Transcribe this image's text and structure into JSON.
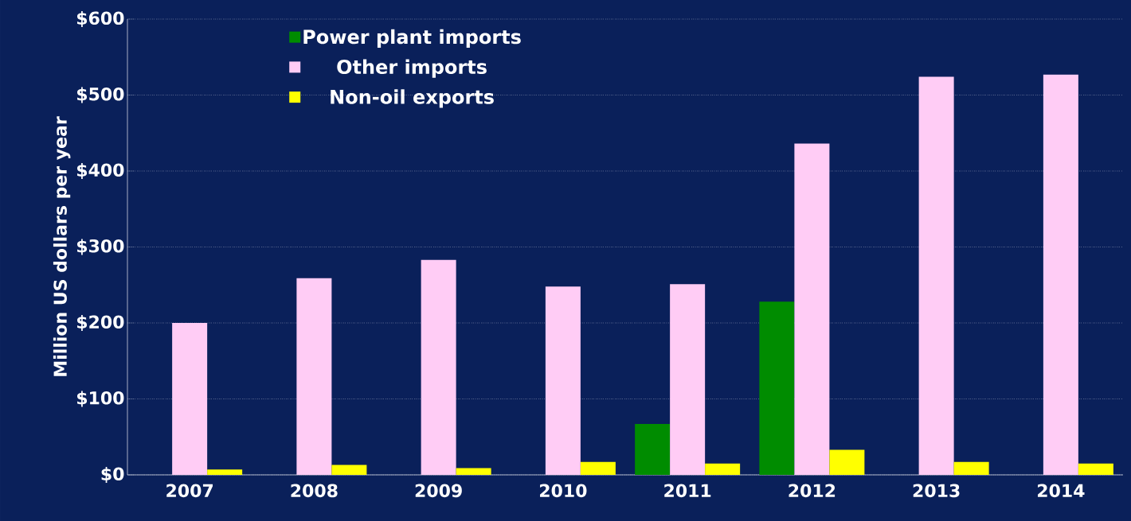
{
  "chart_data": {
    "type": "bar",
    "ylabel": "Million US dollars per year",
    "categories": [
      "2007",
      "2008",
      "2009",
      "2010",
      "2011",
      "2012",
      "2013",
      "2014"
    ],
    "series": [
      {
        "name": "Power plant imports",
        "color": "#008c00",
        "values": [
          null,
          null,
          null,
          null,
          67,
          228,
          null,
          null
        ]
      },
      {
        "name": "Other imports",
        "color": "#ffccf5",
        "values": [
          200,
          259,
          283,
          248,
          251,
          436,
          524,
          527
        ]
      },
      {
        "name": "Non-oil exports",
        "color": "#ffff00",
        "values": [
          7,
          13,
          9,
          17,
          15,
          33,
          17,
          15
        ]
      }
    ],
    "ylim": [
      0,
      600
    ],
    "yticks": [
      {
        "value": 0,
        "label": "$0"
      },
      {
        "value": 100,
        "label": "$100"
      },
      {
        "value": 200,
        "label": "$200"
      },
      {
        "value": 300,
        "label": "$300"
      },
      {
        "value": 400,
        "label": "$400"
      },
      {
        "value": 500,
        "label": "$500"
      },
      {
        "value": 600,
        "label": "$600"
      }
    ],
    "grid": "y",
    "legend": "top left"
  }
}
